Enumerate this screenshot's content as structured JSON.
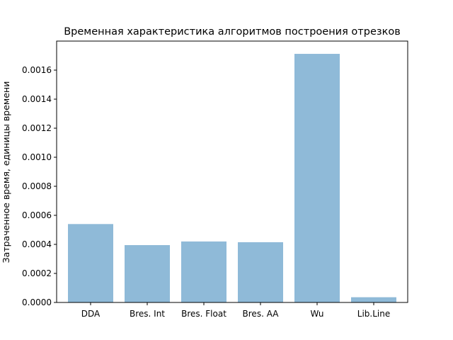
{
  "chart_data": {
    "type": "bar",
    "title": "Временная характеристика алгоритмов построения отрезков",
    "xlabel": "",
    "ylabel": "Затраченное время, единицы времени",
    "categories": [
      "DDA",
      "Bres. Int",
      "Bres. Float",
      "Bres. AA",
      "Wu",
      "Lib.Line"
    ],
    "values": [
      0.00054,
      0.000395,
      0.00042,
      0.000415,
      0.001712,
      3.6e-05
    ],
    "ylim": [
      0,
      0.0018
    ],
    "yticks": [
      0,
      0.0002,
      0.0004,
      0.0006,
      0.0008,
      0.001,
      0.0012,
      0.0014,
      0.0016
    ],
    "ytick_labels": [
      "0.0000",
      "0.0002",
      "0.0004",
      "0.0006",
      "0.0008",
      "0.0010",
      "0.0012",
      "0.0014",
      "0.0016"
    ],
    "grid": false,
    "bar_color": "#8fbad8"
  }
}
